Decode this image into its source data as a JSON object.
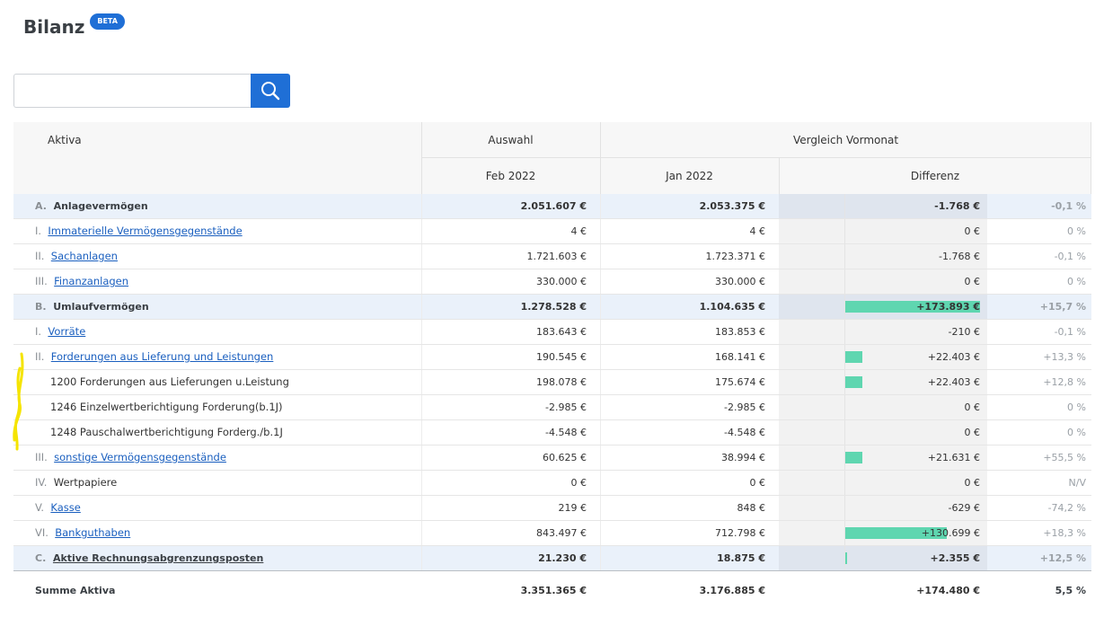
{
  "page": {
    "title": "Bilanz",
    "badge": "BETA"
  },
  "search": {
    "value": "",
    "placeholder": ""
  },
  "table": {
    "headers": {
      "aktiva": "Aktiva",
      "auswahl": "Auswahl",
      "vergleich": "Vergleich Vormonat",
      "feb": "Feb 2022",
      "jan": "Jan 2022",
      "differenz": "Differenz"
    },
    "rows": [
      {
        "num": "A.",
        "label": "Anlagevermögen",
        "type": "group",
        "link": false,
        "feb": "2.051.607 €",
        "jan": "2.053.375 €",
        "diff": "-1.768 €",
        "pct": "-0,1 %",
        "bar": 0
      },
      {
        "num": "I.",
        "label": "Immaterielle Vermögensgegenstände",
        "type": "item",
        "link": true,
        "feb": "4 €",
        "jan": "4 €",
        "diff": "0 €",
        "pct": "0 %",
        "bar": 0
      },
      {
        "num": "II.",
        "label": "Sachanlagen",
        "type": "item",
        "link": true,
        "feb": "1.721.603 €",
        "jan": "1.723.371 €",
        "diff": "-1.768 €",
        "pct": "-0,1 %",
        "bar": 0
      },
      {
        "num": "III.",
        "label": "Finanzanlagen",
        "type": "item",
        "link": true,
        "feb": "330.000 €",
        "jan": "330.000 €",
        "diff": "0 €",
        "pct": "0 %",
        "bar": 0
      },
      {
        "num": "B.",
        "label": "Umlaufvermögen",
        "type": "group",
        "link": false,
        "feb": "1.278.528 €",
        "jan": "1.104.635 €",
        "diff": "+173.893 €",
        "pct": "+15,7 %",
        "bar": 1.0
      },
      {
        "num": "I.",
        "label": "Vorräte",
        "type": "item",
        "link": true,
        "feb": "183.643 €",
        "jan": "183.853 €",
        "diff": "-210 €",
        "pct": "-0,1 %",
        "bar": 0
      },
      {
        "num": "II.",
        "label": "Forderungen aus Lieferung und Leistungen",
        "type": "item",
        "link": true,
        "feb": "190.545 €",
        "jan": "168.141 €",
        "diff": "+22.403 €",
        "pct": "+13,3 %",
        "bar": 0.129
      },
      {
        "num": "",
        "label": "1200 Forderungen aus Lieferungen u.Leistung",
        "type": "sub",
        "link": false,
        "feb": "198.078 €",
        "jan": "175.674 €",
        "diff": "+22.403 €",
        "pct": "+12,8 %",
        "bar": 0.129
      },
      {
        "num": "",
        "label": "1246 Einzelwertberichtigung Forderung(b.1J)",
        "type": "sub",
        "link": false,
        "feb": "-2.985 €",
        "jan": "-2.985 €",
        "diff": "0 €",
        "pct": "0 %",
        "bar": 0
      },
      {
        "num": "",
        "label": "1248 Pauschalwertberichtigung Forderg./b.1J",
        "type": "sub",
        "link": false,
        "feb": "-4.548 €",
        "jan": "-4.548 €",
        "diff": "0 €",
        "pct": "0 %",
        "bar": 0
      },
      {
        "num": "III.",
        "label": "sonstige Vermögensgegenstände",
        "type": "item",
        "link": true,
        "feb": "60.625 €",
        "jan": "38.994 €",
        "diff": "+21.631 €",
        "pct": "+55,5 %",
        "bar": 0.124
      },
      {
        "num": "IV.",
        "label": "Wertpapiere",
        "type": "item",
        "link": false,
        "feb": "0 €",
        "jan": "0 €",
        "diff": "0 €",
        "pct": "N/V",
        "bar": 0
      },
      {
        "num": "V.",
        "label": "Kasse",
        "type": "item",
        "link": true,
        "feb": "219 €",
        "jan": "848 €",
        "diff": "-629 €",
        "pct": "-74,2 %",
        "bar": 0
      },
      {
        "num": "VI.",
        "label": "Bankguthaben",
        "type": "item",
        "link": true,
        "feb": "843.497 €",
        "jan": "712.798 €",
        "diff": "+130.699 €",
        "pct": "+18,3 %",
        "bar": 0.752
      },
      {
        "num": "C.",
        "label": "Aktive Rechnungsabgrenzungsposten",
        "type": "group",
        "link": true,
        "feb": "21.230 €",
        "jan": "18.875 €",
        "diff": "+2.355 €",
        "pct": "+12,5 %",
        "bar": 0.014
      }
    ],
    "summary": {
      "label": "Summe Aktiva",
      "feb": "3.351.365 €",
      "jan": "3.176.885 €",
      "diff": "+174.480 €",
      "pct": "5,5 %"
    }
  },
  "colors": {
    "accent": "#1f6fd6",
    "bar": "#5fd6b0",
    "group_bg": "#eaf1fa",
    "link": "#1a5fbf",
    "highlight": "#f5e400"
  }
}
